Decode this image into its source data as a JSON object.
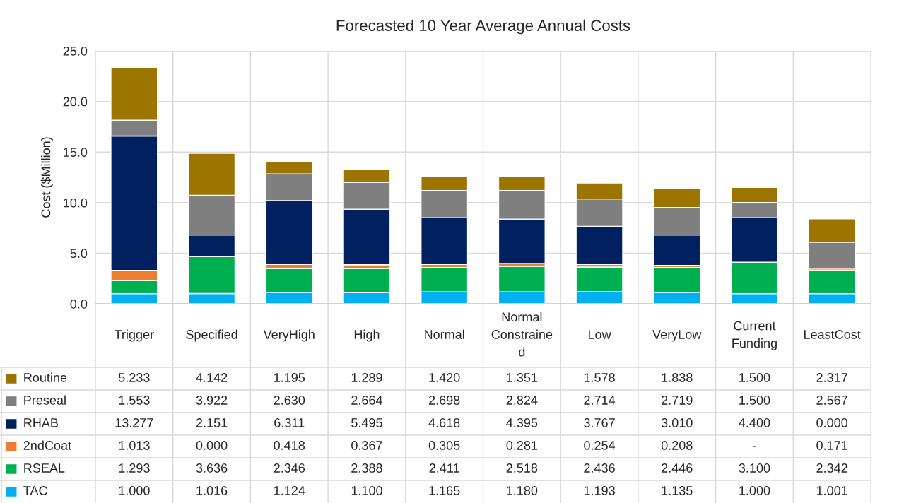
{
  "chart_data": {
    "type": "bar",
    "title": "Forecasted 10 Year Average Annual Costs",
    "ylabel": "Cost ($Million)",
    "categories": [
      "Trigger",
      "Specified",
      "VeryHigh",
      "High",
      "Normal",
      "Normal Constrained",
      "Low",
      "VeryLow",
      "Current Funding",
      "LeastCost"
    ],
    "stacked": true,
    "ylim": [
      0,
      25
    ],
    "yticks": [
      {
        "value": 0,
        "label": "0.0"
      },
      {
        "value": 5,
        "label": "5.0"
      },
      {
        "value": 10,
        "label": "10.0"
      },
      {
        "value": 15,
        "label": "15.0"
      },
      {
        "value": 20,
        "label": "20.0"
      },
      {
        "value": 25,
        "label": "25.0"
      }
    ],
    "grid": "y",
    "legend": "bottom",
    "series": [
      {
        "name": "TAC",
        "color": "#00b0f0",
        "values": [
          1.0,
          1.016,
          1.124,
          1.1,
          1.165,
          1.18,
          1.193,
          1.135,
          1.0,
          1.001
        ],
        "value_labels": [
          "1.000",
          "1.016",
          "1.124",
          "1.100",
          "1.165",
          "1.180",
          "1.193",
          "1.135",
          "1.000",
          "1.001"
        ]
      },
      {
        "name": "RSEAL",
        "color": "#00b050",
        "values": [
          1.293,
          3.636,
          2.346,
          2.388,
          2.411,
          2.518,
          2.436,
          2.446,
          3.1,
          2.342
        ],
        "value_labels": [
          "1.293",
          "3.636",
          "2.346",
          "2.388",
          "2.411",
          "2.518",
          "2.436",
          "2.446",
          "3.100",
          "2.342"
        ]
      },
      {
        "name": "2ndCoat",
        "color": "#ed7d31",
        "values": [
          1.013,
          0.0,
          0.418,
          0.367,
          0.305,
          0.281,
          0.254,
          0.208,
          null,
          0.171
        ],
        "value_labels": [
          "1.013",
          "0.000",
          "0.418",
          "0.367",
          "0.305",
          "0.281",
          "0.254",
          "0.208",
          "-",
          "0.171"
        ]
      },
      {
        "name": "RHAB",
        "color": "#002060",
        "values": [
          13.277,
          2.151,
          6.311,
          5.495,
          4.618,
          4.395,
          3.767,
          3.01,
          4.4,
          0.0
        ],
        "value_labels": [
          "13.277",
          "2.151",
          "6.311",
          "5.495",
          "4.618",
          "4.395",
          "3.767",
          "3.010",
          "4.400",
          "0.000"
        ]
      },
      {
        "name": "Preseal",
        "color": "#7f7f7f",
        "values": [
          1.553,
          3.922,
          2.63,
          2.664,
          2.698,
          2.824,
          2.714,
          2.719,
          1.5,
          2.567
        ],
        "value_labels": [
          "1.553",
          "3.922",
          "2.630",
          "2.664",
          "2.698",
          "2.824",
          "2.714",
          "2.719",
          "1.500",
          "2.567"
        ]
      },
      {
        "name": "Routine",
        "color": "#9c7500",
        "values": [
          5.233,
          4.142,
          1.195,
          1.289,
          1.42,
          1.351,
          1.578,
          1.838,
          1.5,
          2.317
        ],
        "value_labels": [
          "5.233",
          "4.142",
          "1.195",
          "1.289",
          "1.420",
          "1.351",
          "1.578",
          "1.838",
          "1.500",
          "2.317"
        ]
      }
    ]
  }
}
